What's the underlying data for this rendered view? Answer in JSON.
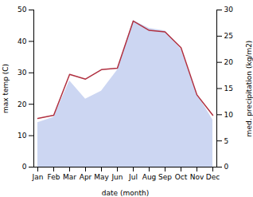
{
  "chart_data": {
    "type": "line",
    "categories": [
      "Jan",
      "Feb",
      "Mar",
      "Apr",
      "May",
      "Jun",
      "Jul",
      "Aug",
      "Sep",
      "Oct",
      "Nov",
      "Dec"
    ],
    "xlabel": "date (month)",
    "ylabel": "max temp (C)",
    "y2label": "med. precipitation (kg/m2)",
    "series": [
      {
        "type": "area",
        "axis": "y2",
        "color": "#bbc8ee",
        "values": [
          8.5,
          9.5,
          16.5,
          13.0,
          14.5,
          18.5,
          28.0,
          26.5,
          26.0,
          22.5,
          14.0,
          9.0
        ]
      },
      {
        "type": "line",
        "color": "#b03040",
        "values": [
          15.5,
          16.5,
          29.5,
          28.0,
          31.0,
          31.5,
          46.5,
          43.5,
          43.0,
          38.0,
          23.0,
          16.5
        ]
      }
    ],
    "ylim": [
      0,
      50
    ],
    "yticks": [
      0,
      10,
      20,
      30,
      40,
      50
    ],
    "y2lim": [
      0,
      30
    ],
    "y2ticks": [
      0,
      5,
      10,
      15,
      20,
      25,
      30
    ],
    "grid": false
  }
}
